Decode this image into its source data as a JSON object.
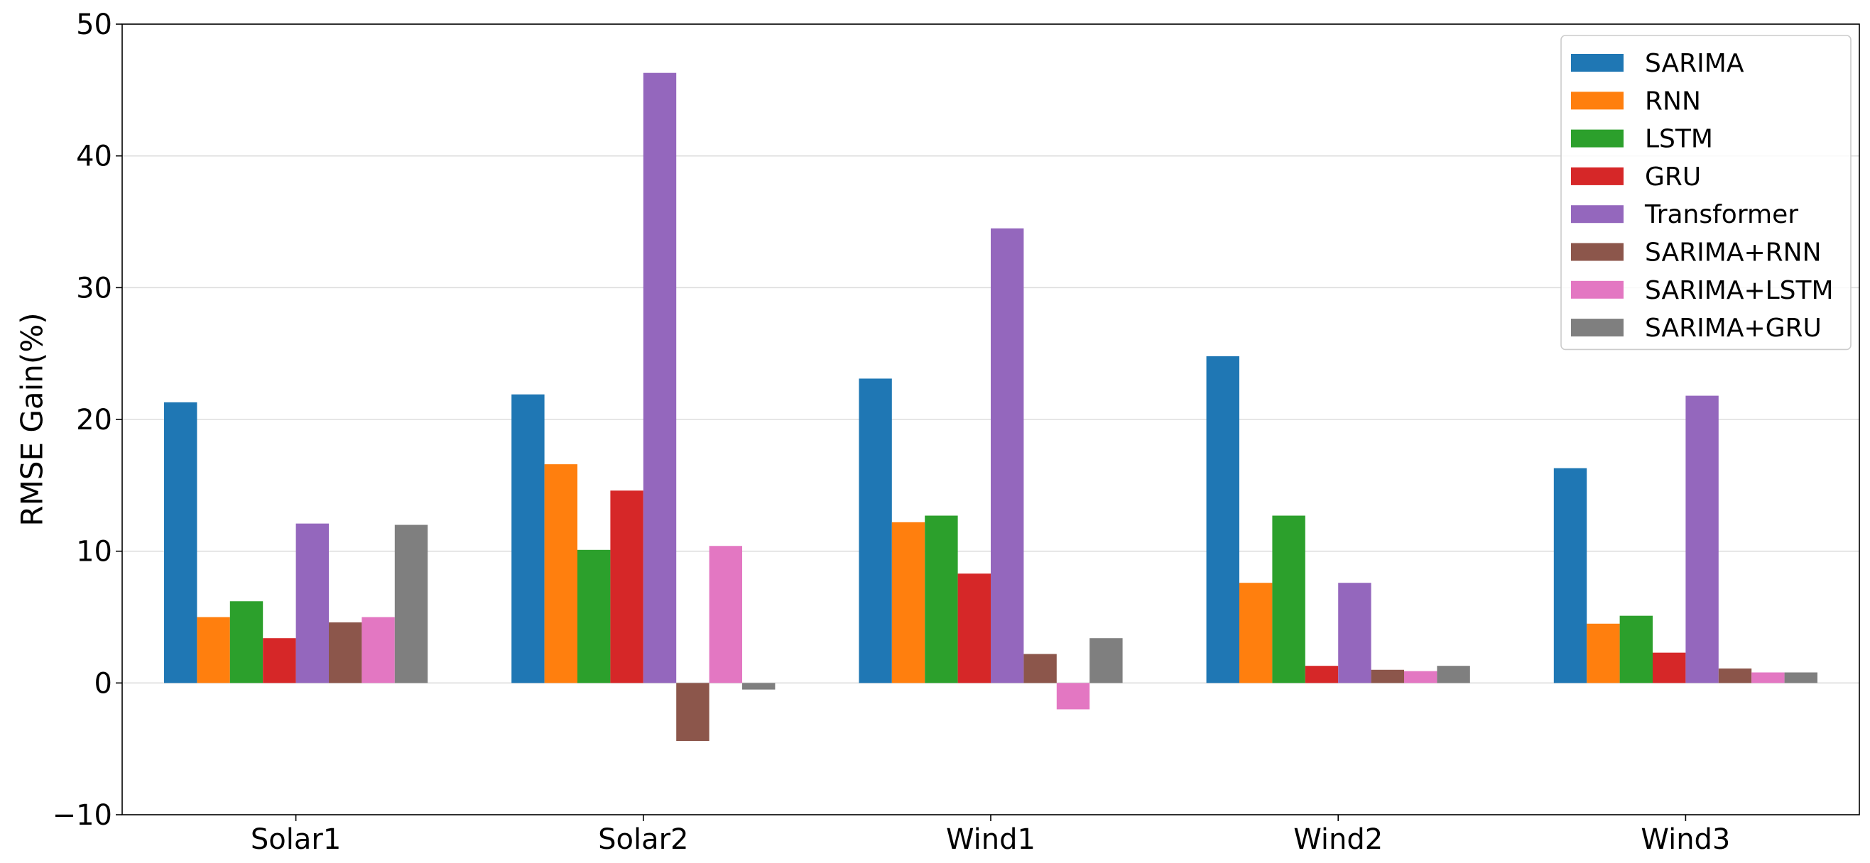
{
  "chart_data": {
    "type": "bar",
    "title": "",
    "xlabel": "",
    "ylabel": "RMSE Gain(%)",
    "ylim": [
      -10,
      50
    ],
    "yticks": [
      -10,
      0,
      10,
      20,
      30,
      40,
      50
    ],
    "grid": "horizontal",
    "legend_position": "top-right",
    "categories": [
      "Solar1",
      "Solar2",
      "Wind1",
      "Wind2",
      "Wind3"
    ],
    "series": [
      {
        "name": "SARIMA",
        "color": "#1f77b4",
        "values": [
          21.3,
          21.9,
          23.1,
          24.8,
          16.3
        ]
      },
      {
        "name": "RNN",
        "color": "#ff7f0e",
        "values": [
          5.0,
          16.6,
          12.2,
          7.6,
          4.5
        ]
      },
      {
        "name": "LSTM",
        "color": "#2ca02c",
        "values": [
          6.2,
          10.1,
          12.7,
          12.7,
          5.1
        ]
      },
      {
        "name": "GRU",
        "color": "#d62728",
        "values": [
          3.4,
          14.6,
          8.3,
          1.3,
          2.3
        ]
      },
      {
        "name": "Transformer",
        "color": "#9467bd",
        "values": [
          12.1,
          46.3,
          34.5,
          7.6,
          21.8
        ]
      },
      {
        "name": "SARIMA+RNN",
        "color": "#8c564b",
        "values": [
          4.6,
          -4.4,
          2.2,
          1.0,
          1.1
        ]
      },
      {
        "name": "SARIMA+LSTM",
        "color": "#e377c2",
        "values": [
          5.0,
          10.4,
          -2.0,
          0.9,
          0.8
        ]
      },
      {
        "name": "SARIMA+GRU",
        "color": "#7f7f7f",
        "values": [
          12.0,
          -0.5,
          3.4,
          1.3,
          0.8
        ]
      }
    ]
  }
}
